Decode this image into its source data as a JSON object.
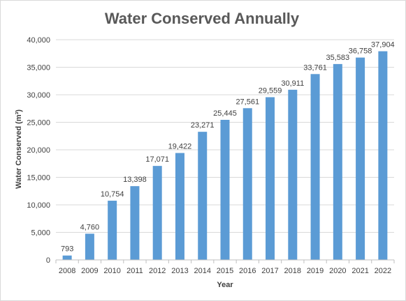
{
  "chart_data": {
    "type": "bar",
    "title": "Water Conserved Annually",
    "xlabel": "Year",
    "ylabel": "Water Conserved (m³)",
    "ylim": [
      0,
      40000
    ],
    "yticks": [
      0,
      5000,
      10000,
      15000,
      20000,
      25000,
      30000,
      35000,
      40000
    ],
    "ytick_labels": [
      "0",
      "5,000",
      "10,000",
      "15,000",
      "20,000",
      "25,000",
      "30,000",
      "35,000",
      "40,000"
    ],
    "grid": true,
    "legend": "none",
    "bar_color": "#5b9bd5",
    "categories": [
      "2008",
      "2009",
      "2010",
      "2011",
      "2012",
      "2013",
      "2014",
      "2015",
      "2016",
      "2017",
      "2018",
      "2019",
      "2020",
      "2021",
      "2022"
    ],
    "values": [
      793,
      4760,
      10754,
      13398,
      17071,
      19422,
      23271,
      25445,
      27561,
      29559,
      30911,
      33761,
      35583,
      36758,
      37904
    ],
    "data_labels": [
      "793",
      "4,760",
      "10,754",
      "13,398",
      "17,071",
      "19,422",
      "23,271",
      "25,445",
      "27,561",
      "29,559",
      "30,911",
      "33,761",
      "35,583",
      "36,758",
      "37,904"
    ]
  }
}
